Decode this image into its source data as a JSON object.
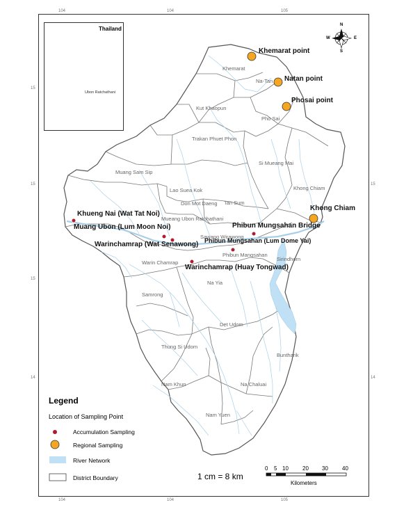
{
  "map": {
    "inset": {
      "title": "Thailand",
      "province_label": "Ubon Ratchathani",
      "highlight_color": "#e8232a"
    },
    "compass": {
      "n": "N",
      "e": "E",
      "s": "S",
      "w": "W"
    },
    "graticule": {
      "lon_labels": [
        "104",
        "104",
        "105",
        "104",
        "104",
        "105"
      ],
      "lat_labels": [
        "15",
        "15",
        "15",
        "15",
        "14",
        "14"
      ]
    },
    "districts": [
      "Khemarat",
      "Na-Tan",
      "Kut Khaopun",
      "Pho Sai",
      "Trakan Phuet Phon",
      "Si Mueang Mai",
      "Muang Sam Sip",
      "Khong Chiam",
      "Lao Suea Kok",
      "Don Mot Daeng",
      "Tan Sum",
      "Mueang Ubon Ratchathani",
      "Sawang Wirawong",
      "Phibun Mangsahan",
      "Warin Chamrap",
      "Sirindhorn",
      "Na Yia",
      "Samrong",
      "Det Udom",
      "Thung Si Udom",
      "Buntharik",
      "Nam Khun",
      "Na Chaluai",
      "Nam Yuen"
    ],
    "sampling_points": {
      "regional": [
        "Khemarat point",
        "Natan point",
        "Phosai point",
        "Khong Chiam"
      ],
      "accumulation": [
        "Khueng Nai (Wat Tat Noi)",
        "Muang Ubon (Lum Moon Noi)",
        "Warinchamrap (Wat Senawong)",
        "Phibun Mungsahan Bridge",
        "Phibun Mungsahan (Lum Dome Yai)",
        "Warinchamrap (Huay Tongwad)"
      ]
    },
    "colors": {
      "regional_fill": "#f5a623",
      "accumulation_fill": "#b01c2e",
      "water": "#bfe0f5",
      "boundary": "#555555"
    }
  },
  "legend": {
    "title": "Legend",
    "subtitle": "Location of Sampling Point",
    "items": [
      "Accumulation Sampling",
      "Regional Sampling",
      "River Network",
      "District Boundary"
    ]
  },
  "scale": {
    "ratio": "1 cm = 8 km",
    "labels": [
      "0",
      "5",
      "10",
      "20",
      "30",
      "40"
    ],
    "unit": "Kilometers"
  }
}
